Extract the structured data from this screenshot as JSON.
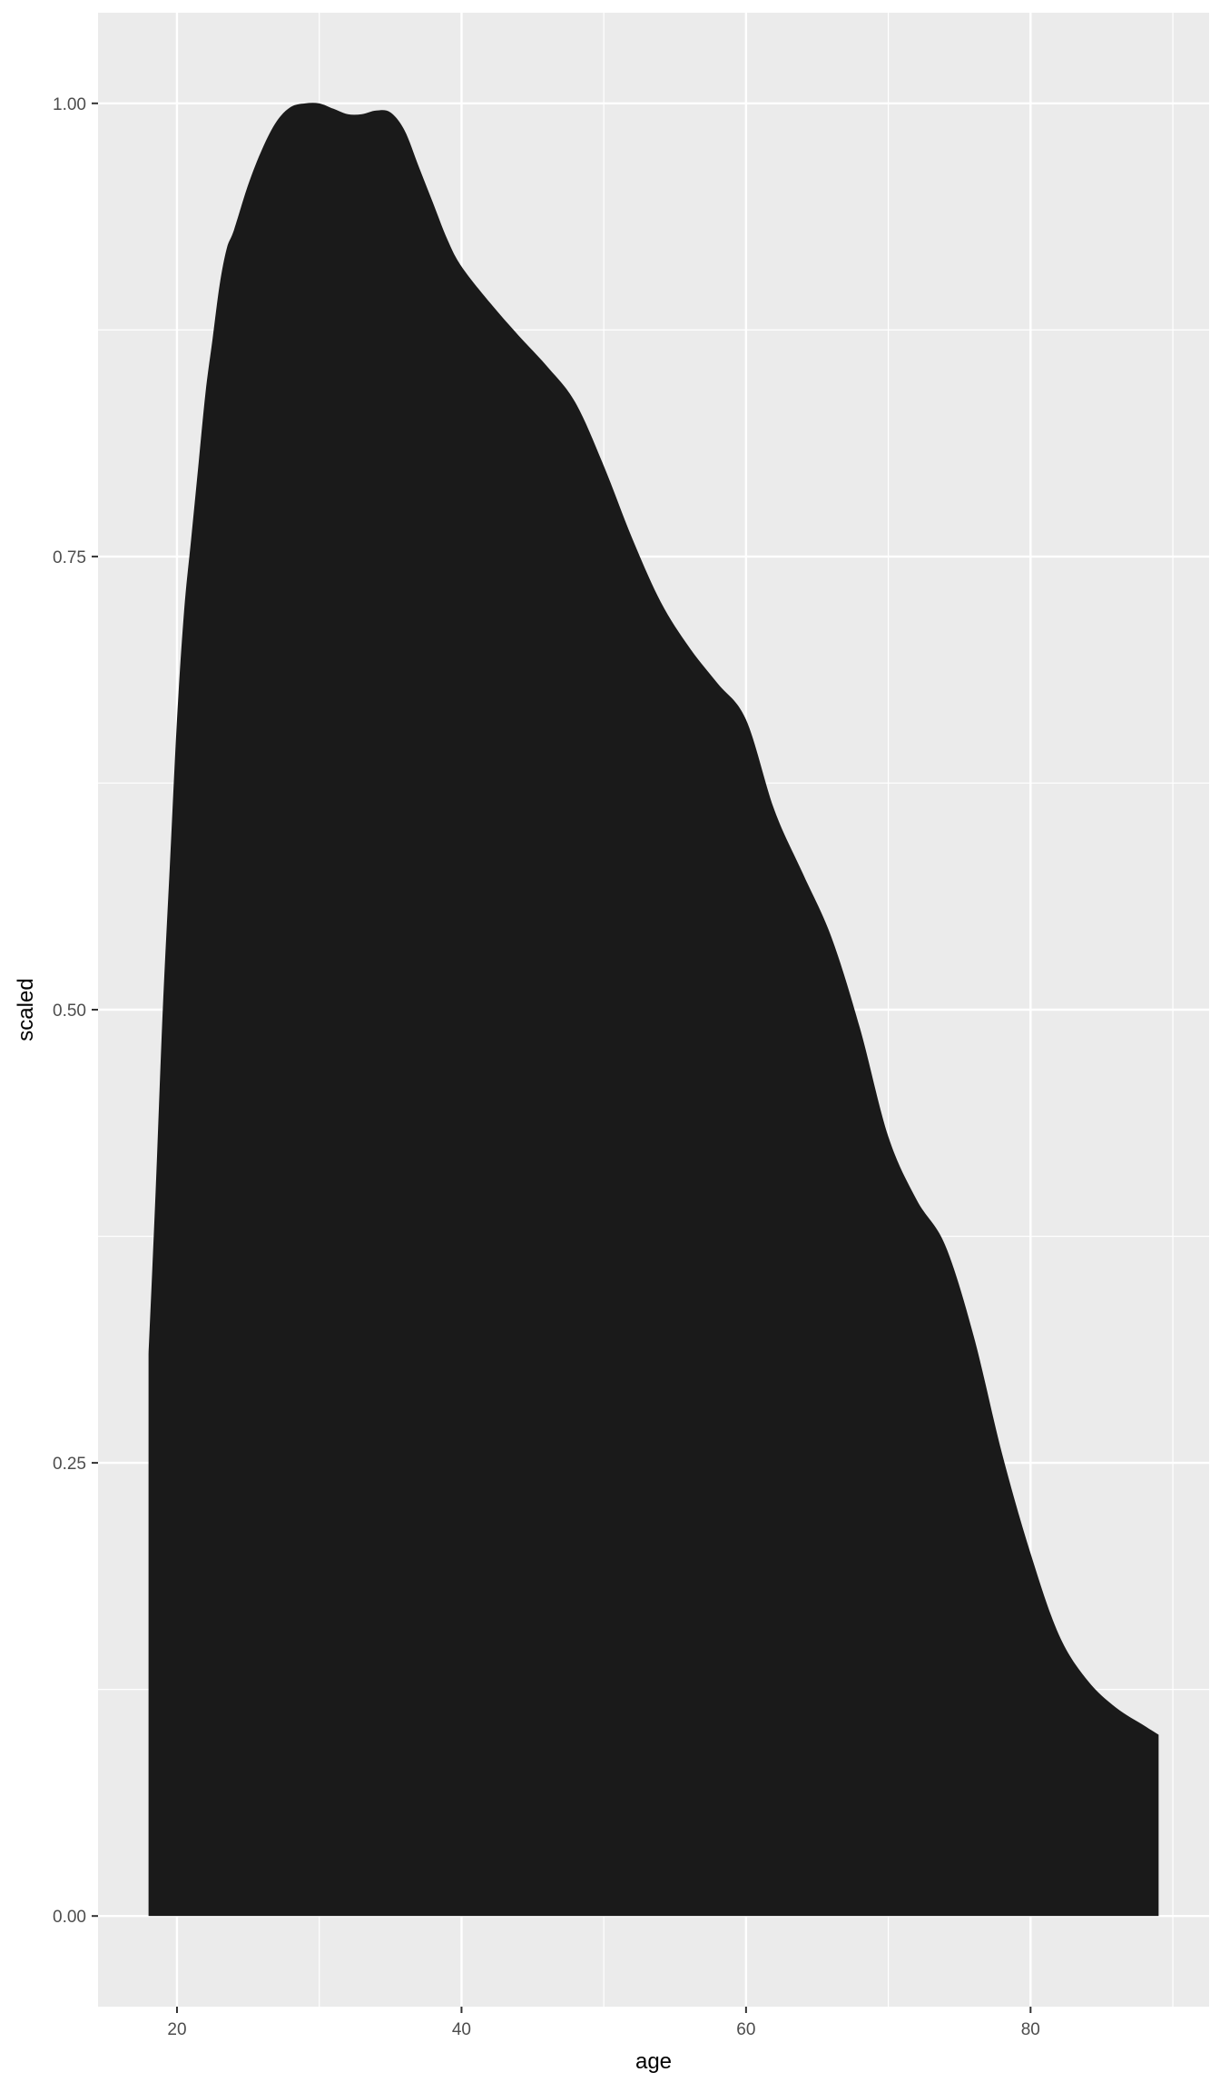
{
  "chart_data": {
    "type": "area",
    "xlabel": "age",
    "ylabel": "scaled",
    "xlim": [
      14.45,
      92.55
    ],
    "ylim": [
      -0.05,
      1.05
    ],
    "x_ticks": [
      20,
      40,
      60,
      80
    ],
    "x_tick_labels": [
      "20",
      "40",
      "60",
      "80"
    ],
    "y_ticks": [
      0,
      0.25,
      0.5,
      0.75,
      1
    ],
    "y_tick_labels": [
      "0.00",
      "0.25",
      "0.50",
      "0.75",
      "1.00"
    ],
    "grid": true,
    "legend": "none",
    "colors": {
      "panel_background": "#ebebeb",
      "grid_line": "#ffffff",
      "fill": "#1a1a1a",
      "tick_label": "#4d4d4d",
      "axis_title": "#000000"
    },
    "series": [
      {
        "x": [
          18,
          18.5,
          19,
          19.5,
          20,
          20.5,
          21,
          21.5,
          22,
          22.5,
          23,
          23.5,
          24,
          25,
          26,
          27,
          28,
          29,
          30,
          31,
          32,
          33,
          34,
          35,
          36,
          37,
          38,
          39,
          40,
          42,
          44,
          46,
          48,
          50,
          52,
          54,
          56,
          58,
          60,
          62,
          64,
          66,
          68,
          70,
          72,
          74,
          76,
          78,
          80,
          82,
          84,
          86,
          88,
          89
        ],
        "y": [
          0.31,
          0.4,
          0.5,
          0.58,
          0.66,
          0.72,
          0.76,
          0.8,
          0.84,
          0.87,
          0.9,
          0.92,
          0.93,
          0.955,
          0.975,
          0.99,
          0.998,
          1.0,
          1.0,
          0.997,
          0.994,
          0.994,
          0.996,
          0.995,
          0.985,
          0.965,
          0.945,
          0.925,
          0.91,
          0.89,
          0.872,
          0.855,
          0.835,
          0.8,
          0.76,
          0.725,
          0.7,
          0.68,
          0.66,
          0.61,
          0.575,
          0.54,
          0.49,
          0.43,
          0.395,
          0.37,
          0.32,
          0.255,
          0.2,
          0.155,
          0.13,
          0.115,
          0.105,
          0.1
        ]
      }
    ]
  }
}
